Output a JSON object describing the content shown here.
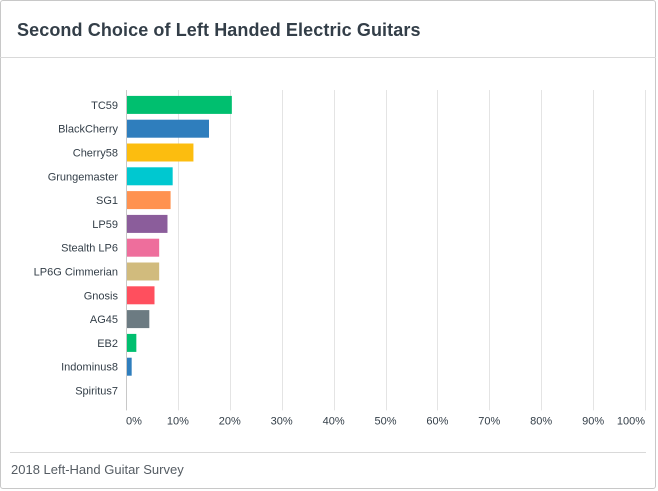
{
  "header": {
    "title": "Second Choice of Left Handed Electric Guitars"
  },
  "footer": {
    "text": "2018 Left-Hand Guitar Survey"
  },
  "chart_data": {
    "type": "bar",
    "orientation": "horizontal",
    "title": "Second Choice of Left Handed Electric Guitars",
    "categories": [
      "TC59",
      "BlackCherry",
      "Cherry58",
      "Grungemaster",
      "SG1",
      "LP59",
      "Stealth LP6",
      "LP6G Cimmerian",
      "Gnosis",
      "AG45",
      "EB2",
      "Indominus8",
      "Spiritus7"
    ],
    "values": [
      20.2,
      15.8,
      12.8,
      8.8,
      8.4,
      7.8,
      6.2,
      6.2,
      5.3,
      4.3,
      1.8,
      0.9,
      0
    ],
    "colors": [
      "#00bf6f",
      "#2f7ebd",
      "#fcbd0f",
      "#00c8d0",
      "#ff9250",
      "#8b5d9b",
      "#ee6e9c",
      "#d1bb7d",
      "#ff4f5e",
      "#6c7b82",
      "#00bf6f",
      "#2f7ebd",
      "#fcbd0f"
    ],
    "xlim": [
      0,
      100
    ],
    "ticks": [
      0,
      10,
      20,
      30,
      40,
      50,
      60,
      70,
      80,
      90,
      100
    ],
    "tick_labels": [
      "0%",
      "10%",
      "20%",
      "30%",
      "40%",
      "50%",
      "60%",
      "70%",
      "80%",
      "90%",
      "100%"
    ],
    "grid": true,
    "legend": "none"
  }
}
